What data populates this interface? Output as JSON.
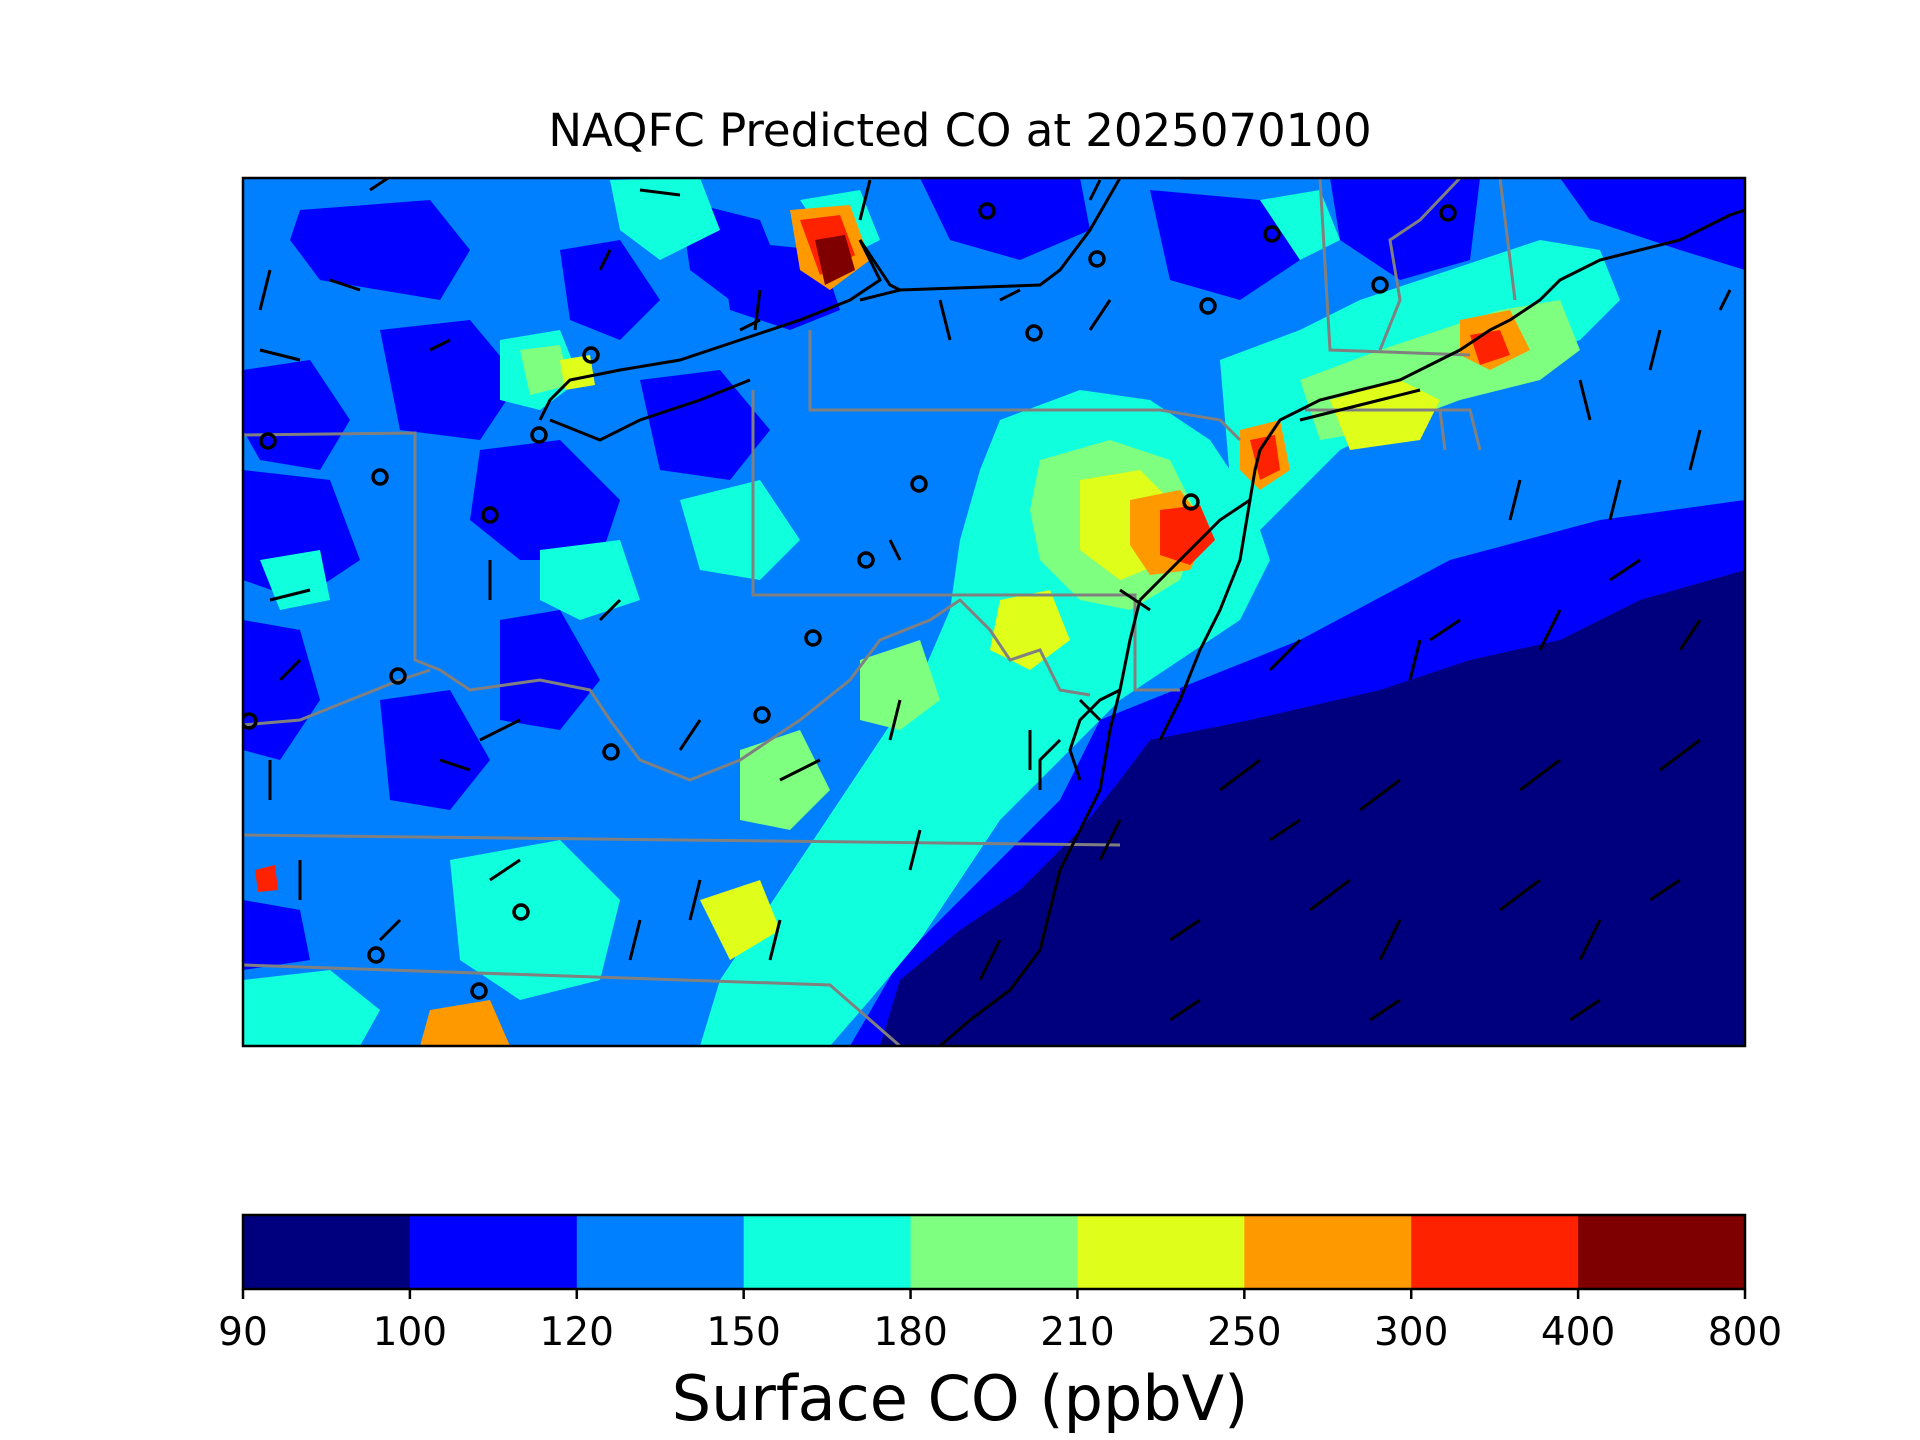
{
  "title": "NAQFC Predicted CO at 2025070100",
  "colorbar": {
    "label": "Surface CO (ppbV)",
    "ticks": [
      "90",
      "100",
      "120",
      "150",
      "180",
      "210",
      "250",
      "300",
      "400",
      "800"
    ],
    "colors": [
      "#00007f",
      "#0000ff",
      "#007fff",
      "#10ffdd",
      "#7fff7f",
      "#dfff1a",
      "#ff9900",
      "#ff2200",
      "#7f0000"
    ]
  },
  "map": {
    "region": "northeastern United States",
    "field": "surface CO concentration",
    "overlays": [
      "coastlines",
      "state-boundaries",
      "wind-barbs",
      "calm-wind-circles"
    ]
  }
}
